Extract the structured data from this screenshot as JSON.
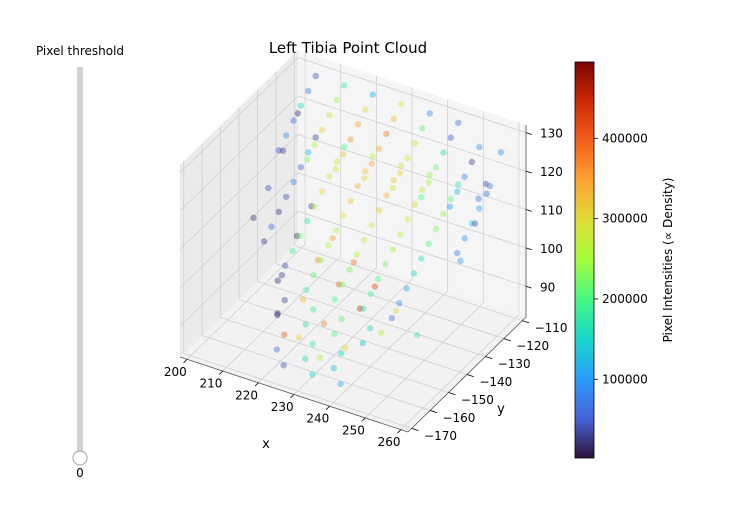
{
  "slider": {
    "label": "Pixel threshold",
    "value_label": "0",
    "value_fraction": 0.0
  },
  "chart_data": {
    "type": "scatter3d",
    "title": "Left Tibia Point Cloud",
    "xlabel": "x",
    "ylabel": "y",
    "zlabel": "",
    "xlim": [
      198,
      262
    ],
    "ylim": [
      -172,
      -108
    ],
    "zlim": [
      82,
      132
    ],
    "xticks": [
      "200",
      "210",
      "220",
      "230",
      "240",
      "250",
      "260"
    ],
    "yticks": [
      "−170",
      "−160",
      "−150",
      "−140",
      "−130",
      "−120",
      "−110"
    ],
    "zticks": [
      "90",
      "100",
      "110",
      "120",
      "130"
    ],
    "xtick_values": [
      200,
      210,
      220,
      230,
      240,
      250,
      260
    ],
    "ytick_values": [
      -170,
      -160,
      -150,
      -140,
      -130,
      -120,
      -110
    ],
    "ztick_values": [
      90,
      100,
      110,
      120,
      130
    ],
    "colorbar": {
      "label": "Pixel Intensities (∝ Density)",
      "min": 2000,
      "max": 495000,
      "ticks": [
        "100000",
        "200000",
        "300000",
        "400000"
      ],
      "tick_values": [
        100000,
        200000,
        300000,
        400000
      ],
      "colormap": "turbo"
    },
    "points": [
      [
        204,
        -110,
        128,
        40000
      ],
      [
        212,
        -110,
        128,
        180000
      ],
      [
        220,
        -110,
        128,
        120000
      ],
      [
        228,
        -110,
        128,
        260000
      ],
      [
        236,
        -110,
        128,
        90000
      ],
      [
        244,
        -110,
        128,
        60000
      ],
      [
        204,
        -114,
        126,
        70000
      ],
      [
        212,
        -114,
        126,
        240000
      ],
      [
        220,
        -114,
        126,
        300000
      ],
      [
        228,
        -114,
        126,
        330000
      ],
      [
        236,
        -114,
        126,
        210000
      ],
      [
        244,
        -114,
        126,
        50000
      ],
      [
        252,
        -114,
        126,
        90000
      ],
      [
        204,
        -118,
        124,
        150000
      ],
      [
        212,
        -118,
        124,
        280000
      ],
      [
        220,
        -118,
        124,
        350000
      ],
      [
        228,
        -118,
        124,
        380000
      ],
      [
        236,
        -118,
        124,
        300000
      ],
      [
        244,
        -118,
        124,
        160000
      ],
      [
        252,
        -118,
        124,
        30000
      ],
      [
        204,
        -122,
        122,
        60000
      ],
      [
        212,
        -122,
        122,
        310000
      ],
      [
        220,
        -122,
        122,
        360000
      ],
      [
        228,
        -122,
        122,
        340000
      ],
      [
        236,
        -122,
        122,
        290000
      ],
      [
        244,
        -122,
        122,
        220000
      ],
      [
        252,
        -122,
        122,
        80000
      ],
      [
        258,
        -122,
        122,
        40000
      ],
      [
        204,
        -126,
        120,
        90000
      ],
      [
        212,
        -126,
        120,
        260000
      ],
      [
        220,
        -126,
        120,
        320000
      ],
      [
        228,
        -126,
        120,
        350000
      ],
      [
        236,
        -126,
        120,
        310000
      ],
      [
        244,
        -126,
        120,
        250000
      ],
      [
        252,
        -126,
        120,
        120000
      ],
      [
        258,
        -126,
        120,
        60000
      ],
      [
        204,
        -130,
        118,
        40000
      ],
      [
        212,
        -130,
        118,
        230000
      ],
      [
        220,
        -130,
        118,
        290000
      ],
      [
        228,
        -130,
        118,
        300000
      ],
      [
        236,
        -130,
        118,
        270000
      ],
      [
        244,
        -130,
        118,
        200000
      ],
      [
        252,
        -130,
        118,
        100000
      ],
      [
        204,
        -110,
        112,
        30000
      ],
      [
        212,
        -110,
        112,
        200000
      ],
      [
        220,
        -110,
        112,
        250000
      ],
      [
        228,
        -110,
        112,
        280000
      ],
      [
        236,
        -110,
        112,
        240000
      ],
      [
        244,
        -110,
        112,
        170000
      ],
      [
        252,
        -110,
        112,
        60000
      ],
      [
        204,
        -114,
        110,
        120000
      ],
      [
        212,
        -114,
        110,
        270000
      ],
      [
        220,
        -114,
        110,
        320000
      ],
      [
        228,
        -114,
        110,
        310000
      ],
      [
        236,
        -114,
        110,
        280000
      ],
      [
        244,
        -114,
        110,
        210000
      ],
      [
        252,
        -114,
        110,
        110000
      ],
      [
        204,
        -118,
        108,
        50000
      ],
      [
        212,
        -118,
        108,
        290000
      ],
      [
        220,
        -118,
        108,
        340000
      ],
      [
        228,
        -118,
        108,
        330000
      ],
      [
        236,
        -118,
        108,
        300000
      ],
      [
        244,
        -118,
        108,
        240000
      ],
      [
        252,
        -118,
        108,
        140000
      ],
      [
        204,
        -122,
        106,
        80000
      ],
      [
        212,
        -122,
        106,
        300000
      ],
      [
        220,
        -122,
        106,
        320000
      ],
      [
        228,
        -122,
        106,
        310000
      ],
      [
        236,
        -122,
        106,
        290000
      ],
      [
        244,
        -122,
        106,
        230000
      ],
      [
        252,
        -122,
        106,
        90000
      ],
      [
        204,
        -126,
        104,
        40000
      ],
      [
        212,
        -126,
        104,
        260000
      ],
      [
        220,
        -126,
        104,
        300000
      ],
      [
        228,
        -126,
        104,
        290000
      ],
      [
        236,
        -126,
        104,
        260000
      ],
      [
        244,
        -126,
        104,
        200000
      ],
      [
        252,
        -126,
        104,
        70000
      ],
      [
        204,
        -130,
        102,
        20000
      ],
      [
        212,
        -130,
        102,
        180000
      ],
      [
        220,
        -130,
        102,
        250000
      ],
      [
        228,
        -130,
        102,
        270000
      ],
      [
        236,
        -130,
        102,
        240000
      ],
      [
        244,
        -130,
        102,
        160000
      ],
      [
        204,
        -134,
        100,
        60000
      ],
      [
        212,
        -134,
        100,
        210000
      ],
      [
        220,
        -134,
        100,
        260000
      ],
      [
        228,
        -134,
        100,
        250000
      ],
      [
        236,
        -134,
        100,
        220000
      ],
      [
        244,
        -134,
        100,
        150000
      ],
      [
        204,
        -138,
        98,
        30000
      ],
      [
        212,
        -138,
        98,
        190000
      ],
      [
        220,
        -138,
        98,
        240000
      ],
      [
        228,
        -138,
        98,
        230000
      ],
      [
        236,
        -138,
        98,
        200000
      ],
      [
        244,
        -138,
        98,
        110000
      ],
      [
        212,
        -142,
        96,
        40000
      ],
      [
        220,
        -142,
        96,
        210000
      ],
      [
        228,
        -142,
        96,
        220000
      ],
      [
        236,
        -142,
        96,
        190000
      ],
      [
        244,
        -142,
        96,
        90000
      ],
      [
        212,
        -146,
        94,
        20000
      ],
      [
        220,
        -146,
        94,
        180000
      ],
      [
        228,
        -146,
        94,
        200000
      ],
      [
        236,
        -146,
        94,
        170000
      ],
      [
        244,
        -146,
        94,
        60000
      ],
      [
        216,
        -150,
        92,
        30000
      ],
      [
        224,
        -150,
        92,
        190000
      ],
      [
        232,
        -150,
        92,
        210000
      ],
      [
        240,
        -150,
        92,
        160000
      ],
      [
        216,
        -154,
        90,
        20000
      ],
      [
        224,
        -154,
        90,
        170000
      ],
      [
        232,
        -154,
        90,
        200000
      ],
      [
        240,
        -154,
        90,
        130000
      ],
      [
        220,
        -158,
        88,
        400000
      ],
      [
        228,
        -158,
        88,
        180000
      ],
      [
        236,
        -158,
        88,
        150000
      ],
      [
        220,
        -162,
        86,
        60000
      ],
      [
        228,
        -162,
        86,
        160000
      ],
      [
        236,
        -162,
        86,
        120000
      ],
      [
        224,
        -166,
        85,
        40000
      ],
      [
        232,
        -166,
        85,
        150000
      ],
      [
        240,
        -166,
        85,
        110000
      ],
      [
        208,
        -120,
        100,
        30000
      ],
      [
        216,
        -124,
        96,
        350000
      ],
      [
        224,
        -128,
        94,
        380000
      ],
      [
        232,
        -132,
        92,
        420000
      ],
      [
        240,
        -136,
        90,
        300000
      ],
      [
        248,
        -140,
        88,
        180000
      ],
      [
        208,
        -128,
        96,
        20000
      ],
      [
        216,
        -132,
        94,
        360000
      ],
      [
        224,
        -136,
        92,
        400000
      ],
      [
        232,
        -140,
        90,
        440000
      ],
      [
        240,
        -144,
        88,
        260000
      ],
      [
        210,
        -140,
        92,
        30000
      ],
      [
        218,
        -144,
        90,
        330000
      ],
      [
        226,
        -148,
        88,
        370000
      ],
      [
        234,
        -152,
        86,
        300000
      ],
      [
        214,
        -150,
        88,
        20000
      ],
      [
        222,
        -154,
        86,
        320000
      ],
      [
        230,
        -158,
        85,
        250000
      ],
      [
        256,
        -110,
        124,
        90000
      ],
      [
        256,
        -116,
        118,
        70000
      ],
      [
        256,
        -124,
        112,
        40000
      ],
      [
        256,
        -132,
        106,
        100000
      ],
      [
        200,
        -112,
        118,
        20000
      ],
      [
        200,
        -120,
        112,
        30000
      ],
      [
        200,
        -128,
        106,
        40000
      ],
      [
        200,
        -136,
        102,
        20000
      ]
    ]
  }
}
